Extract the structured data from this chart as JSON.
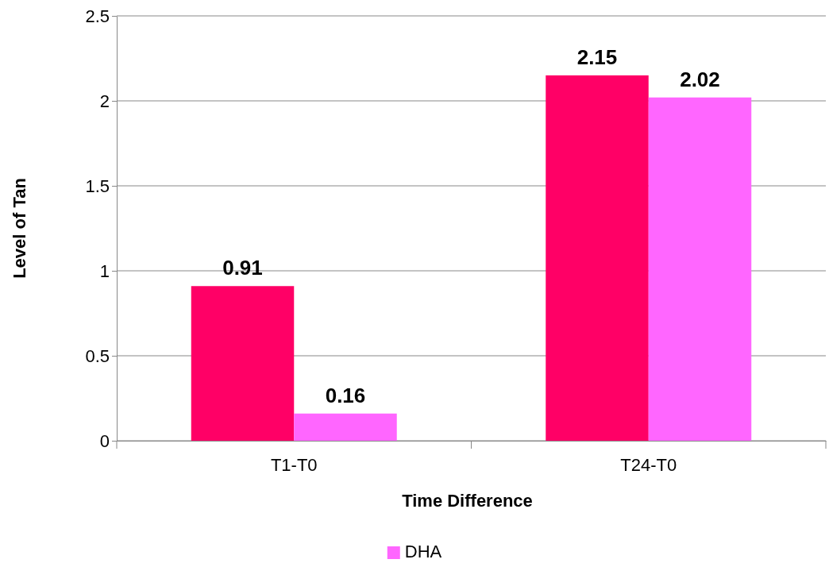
{
  "chart_data": {
    "type": "bar",
    "xlabel": "Time Difference",
    "ylabel": "Level of Tan",
    "categories": [
      "T1-T0",
      "T24-T0"
    ],
    "series": [
      {
        "color": "#ff0066",
        "values": [
          0.91,
          2.15
        ]
      },
      {
        "name": "DHA",
        "color": "#ff66ff",
        "values": [
          0.16,
          2.02
        ]
      }
    ],
    "ylim": [
      0,
      2.5
    ],
    "yticks": [
      0,
      0.5,
      1,
      1.5,
      2,
      2.5
    ],
    "grid": "y",
    "legend": "bottom",
    "data_labels": true
  }
}
